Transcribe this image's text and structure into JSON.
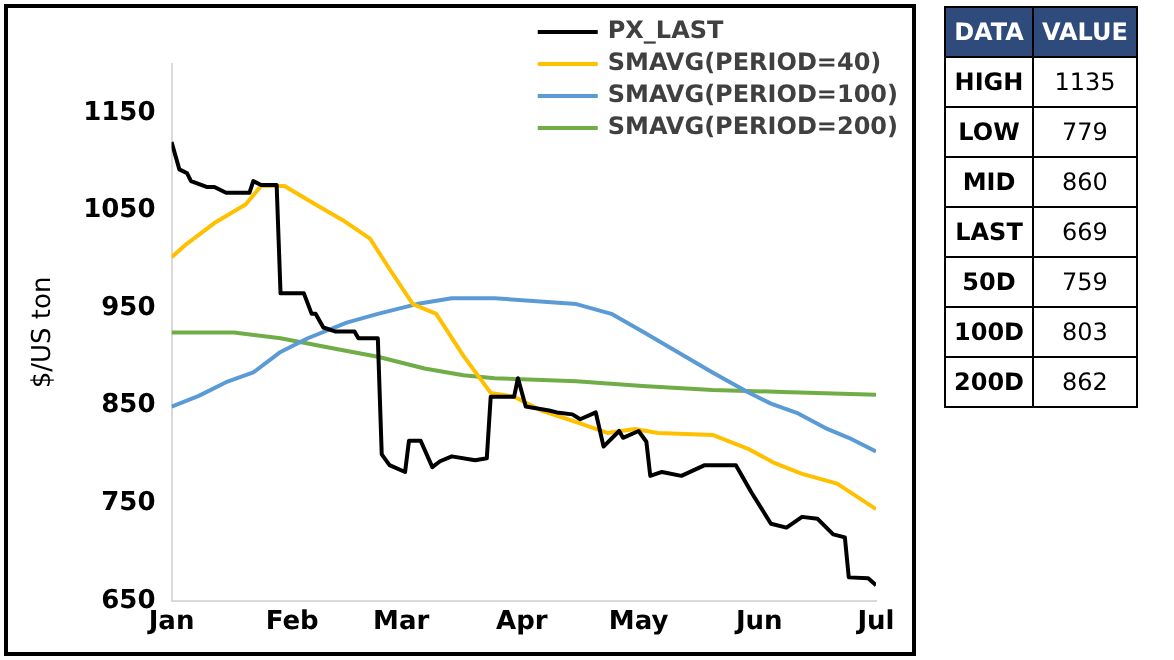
{
  "chart_data": [
    {
      "type": "line",
      "ylabel": "$/US ton",
      "xlim": [
        "--01-01",
        "--07-01"
      ],
      "ylim": [
        650,
        1200
      ],
      "xticks": [
        {
          "value": "--01-01",
          "label": "Jan"
        },
        {
          "value": "--02-01",
          "label": "Feb"
        },
        {
          "value": "--03-01",
          "label": "Mar"
        },
        {
          "value": "--04-01",
          "label": "Apr"
        },
        {
          "value": "--05-01",
          "label": "May"
        },
        {
          "value": "--06-01",
          "label": "Jun"
        },
        {
          "value": "--07-01",
          "label": "Jul"
        }
      ],
      "yticks": [
        650,
        750,
        850,
        950,
        1050,
        1150
      ],
      "grid": false,
      "legend": "top right",
      "marker": "none",
      "line_style": "solid",
      "series": [
        {
          "name": "PX_LAST",
          "color": "#000000",
          "x": [
            "--01-01",
            "--01-03",
            "--01-05",
            "--01-06",
            "--01-10",
            "--01-12",
            "--01-15",
            "--01-21",
            "--01-22",
            "--01-24",
            "--01-28",
            "--01-29",
            "--02-04",
            "--02-06",
            "--02-07",
            "--02-09",
            "--02-12",
            "--02-17",
            "--02-18",
            "--02-23",
            "--02-24",
            "--02-26",
            "--03-02",
            "--03-03",
            "--03-06",
            "--03-09",
            "--03-11",
            "--03-14",
            "--03-20",
            "--03-23",
            "--03-24",
            "--03-30",
            "--03-31",
            "--04-02",
            "--04-08",
            "--04-10",
            "--04-14",
            "--04-16",
            "--04-20",
            "--04-22",
            "--04-26",
            "--04-27",
            "--05-01",
            "--05-03",
            "--05-04",
            "--05-07",
            "--05-12",
            "--05-18",
            "--05-26",
            "--05-30",
            "--06-04",
            "--06-08",
            "--06-12",
            "--06-16",
            "--06-20",
            "--06-23",
            "--06-24",
            "--06-29",
            "--07-01"
          ],
          "values": [
            1120,
            1092,
            1088,
            1080,
            1074,
            1074,
            1068,
            1068,
            1080,
            1076,
            1076,
            965,
            965,
            944,
            944,
            930,
            926,
            926,
            919,
            919,
            800,
            789,
            782,
            814,
            814,
            787,
            793,
            798,
            794,
            796,
            859,
            859,
            878,
            849,
            845,
            843,
            841,
            836,
            843,
            808,
            824,
            817,
            824,
            813,
            778,
            782,
            778,
            789,
            789,
            761,
            729,
            725,
            736,
            734,
            718,
            715,
            674,
            673,
            666
          ]
        },
        {
          "name": "SMAVG(PERIOD=40)",
          "color": "#ffc000",
          "x": [
            "--01-01",
            "--01-05",
            "--01-12",
            "--01-20",
            "--01-24",
            "--01-30",
            "--02-07",
            "--02-14",
            "--02-21",
            "--02-26",
            "--03-04",
            "--03-10",
            "--03-17",
            "--03-24",
            "--03-30",
            "--04-06",
            "--04-15",
            "--04-23",
            "--04-30",
            "--05-06",
            "--05-20",
            "--05-29",
            "--06-05",
            "--06-12",
            "--06-21",
            "--07-01"
          ],
          "values": [
            1002,
            1016,
            1037,
            1056,
            1075,
            1075,
            1056,
            1040,
            1021,
            990,
            954,
            944,
            901,
            863,
            859,
            845,
            833,
            822,
            826,
            822,
            820,
            806,
            791,
            780,
            770,
            744
          ]
        },
        {
          "name": "SMAVG(PERIOD=100)",
          "color": "#5b9bd5",
          "x": [
            "--01-01",
            "--01-08",
            "--01-15",
            "--01-22",
            "--01-29",
            "--02-05",
            "--02-15",
            "--02-23",
            "--03-05",
            "--03-14",
            "--03-25",
            "--04-15",
            "--04-24",
            "--05-02",
            "--05-11",
            "--05-20",
            "--05-29",
            "--06-04",
            "--06-11",
            "--06-18",
            "--06-24",
            "--07-01"
          ],
          "values": [
            849,
            860,
            874,
            884,
            905,
            919,
            935,
            944,
            954,
            960,
            960,
            954,
            944,
            926,
            905,
            884,
            864,
            852,
            842,
            827,
            817,
            803
          ]
        },
        {
          "name": "SMAVG(PERIOD=200)",
          "color": "#70ad47",
          "x": [
            "--01-01",
            "--01-17",
            "--01-29",
            "--02-11",
            "--02-23",
            "--03-07",
            "--03-17",
            "--03-25",
            "--04-15",
            "--05-02",
            "--05-20",
            "--06-07",
            "--07-01"
          ],
          "values": [
            925,
            925,
            919,
            909,
            900,
            888,
            881,
            878,
            875,
            870,
            866,
            864,
            861
          ]
        }
      ]
    },
    {
      "type": "other",
      "xlabel": "DATA",
      "ylabel": "VALUE",
      "categories": [
        "HIGH",
        "LOW",
        "MID",
        "LAST",
        "50D",
        "100D",
        "200D"
      ],
      "values": [
        1135,
        779,
        860,
        669,
        759,
        803,
        862
      ],
      "data_labels": true
    }
  ]
}
